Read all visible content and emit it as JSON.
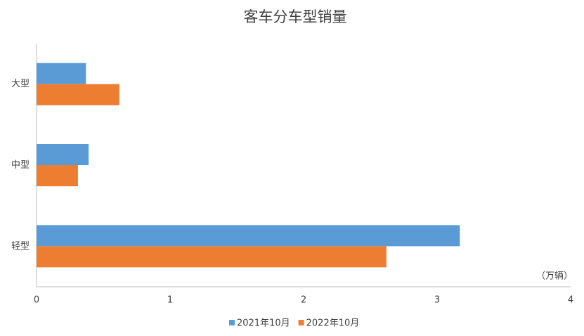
{
  "chart_data": {
    "type": "hbar",
    "title": "客车分车型销量",
    "categories": [
      "大型",
      "中型",
      "轻型"
    ],
    "series": [
      {
        "name": "2021年10月",
        "color": "#5b9bd5",
        "values": [
          0.37,
          0.39,
          3.17
        ]
      },
      {
        "name": "2022年10月",
        "color": "#ed7d31",
        "values": [
          0.62,
          0.31,
          2.62
        ]
      }
    ],
    "xlim": [
      0,
      4
    ],
    "xticks": [
      0,
      1,
      2,
      3,
      4
    ],
    "unit_label": "（万辆）",
    "grid": false,
    "legend": "bottom"
  }
}
